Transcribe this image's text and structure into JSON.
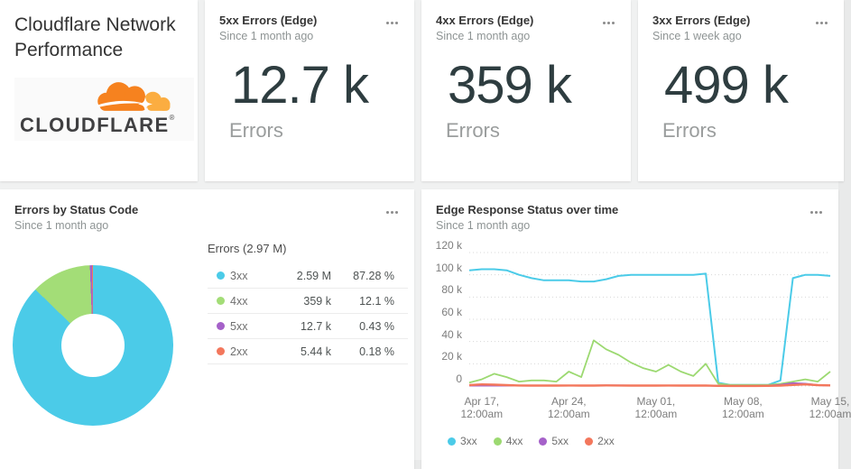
{
  "page": {
    "background": "#f0f1f1",
    "card_background": "#ffffff"
  },
  "markdown_card": {
    "title_line1": "Cloudflare Network",
    "title_line2": "Performance",
    "logo_wordmark": "CLOUDFLARE",
    "logo_registered": "®",
    "logo_orange": "#f6821f",
    "logo_light_orange": "#fbad41"
  },
  "billboards": [
    {
      "title": "5xx Errors (Edge)",
      "subtitle": "Since 1 month ago",
      "value": "12.7 k",
      "unit": "Errors"
    },
    {
      "title": "4xx Errors (Edge)",
      "subtitle": "Since 1 month ago",
      "value": "359 k",
      "unit": "Errors"
    },
    {
      "title": "3xx Errors (Edge)",
      "subtitle": "Since 1 week ago",
      "value": "499 k",
      "unit": "Errors"
    }
  ],
  "pie_card": {
    "title": "Errors by Status Code",
    "subtitle": "Since 1 month ago",
    "legend_header": "Errors (2.97 M)",
    "rows": [
      {
        "label": "3xx",
        "value": "2.59 M",
        "pct": "87.28 %",
        "color": "#4bcbe8"
      },
      {
        "label": "4xx",
        "value": "359 k",
        "pct": "12.1 %",
        "color": "#a3dd77"
      },
      {
        "label": "5xx",
        "value": "12.7 k",
        "pct": "0.43 %",
        "color": "#a561c9"
      },
      {
        "label": "2xx",
        "value": "5.44 k",
        "pct": "0.18 %",
        "color": "#f3775c"
      }
    ]
  },
  "line_card": {
    "title": "Edge Response Status over time",
    "subtitle": "Since 1 month ago"
  },
  "chart_data": [
    {
      "type": "pie",
      "title": "Errors by Status Code",
      "subtitle": "Since 1 month ago",
      "total_label": "Errors (2.97 M)",
      "categories": [
        "3xx",
        "4xx",
        "5xx",
        "2xx"
      ],
      "values_pct": [
        87.28,
        12.1,
        0.43,
        0.18
      ],
      "values_label": [
        "2.59 M",
        "359 k",
        "12.7 k",
        "5.44 k"
      ],
      "colors": [
        "#4bcbe8",
        "#a3dd77",
        "#a561c9",
        "#f3775c"
      ],
      "donut": true,
      "start_angle_deg": 0,
      "direction": "clockwise"
    },
    {
      "type": "line",
      "title": "Edge Response Status over time",
      "subtitle": "Since 1 month ago",
      "unit": "thousands of errors (k)",
      "ylim": [
        0,
        120
      ],
      "ytick_values": [
        0,
        20,
        40,
        60,
        80,
        100,
        120
      ],
      "ytick_labels": [
        "0",
        "20 k",
        "40 k",
        "60 k",
        "80 k",
        "100 k",
        "120 k"
      ],
      "grid": "dotted-horizontal",
      "legend_position": "bottom-left",
      "x": [
        "Apr 16",
        "Apr 17",
        "Apr 18",
        "Apr 19",
        "Apr 20",
        "Apr 21",
        "Apr 22",
        "Apr 23",
        "Apr 24",
        "Apr 25",
        "Apr 26",
        "Apr 27",
        "Apr 28",
        "Apr 29",
        "Apr 30",
        "May 01",
        "May 02",
        "May 03",
        "May 04",
        "May 05",
        "May 06",
        "May 07",
        "May 08",
        "May 09",
        "May 10",
        "May 11",
        "May 12",
        "May 13",
        "May 14",
        "May 15"
      ],
      "xticks": [
        {
          "index": 1,
          "line1": "Apr 17,",
          "line2": "12:00am"
        },
        {
          "index": 8,
          "line1": "Apr 24,",
          "line2": "12:00am"
        },
        {
          "index": 15,
          "line1": "May 01,",
          "line2": "12:00am"
        },
        {
          "index": 22,
          "line1": "May 08,",
          "line2": "12:00am"
        },
        {
          "index": 29,
          "line1": "May 15,",
          "line2": "12:00am"
        }
      ],
      "series": [
        {
          "name": "3xx",
          "color": "#4bcbe8",
          "values": [
            104,
            105,
            105,
            104,
            100,
            97,
            95,
            95,
            95,
            94,
            94,
            96,
            99,
            100,
            100,
            100,
            100,
            100,
            100,
            101,
            3,
            1,
            1,
            1,
            1,
            5,
            97,
            100,
            100,
            99
          ]
        },
        {
          "name": "4xx",
          "color": "#9cd971",
          "values": [
            3,
            6,
            11,
            8,
            4,
            5,
            5,
            4,
            13,
            8,
            41,
            33,
            28,
            21,
            16,
            13,
            19,
            13,
            9,
            20,
            2,
            1,
            1,
            1,
            1,
            2,
            4,
            6,
            4,
            13
          ]
        },
        {
          "name": "5xx",
          "color": "#a561c9",
          "values": [
            0.4,
            0.4,
            0.4,
            0.4,
            0.4,
            0.4,
            0.4,
            0.4,
            0.4,
            0.4,
            0.4,
            0.5,
            0.5,
            0.4,
            0.4,
            0.4,
            0.4,
            0.4,
            0.4,
            0.4,
            0.2,
            0.1,
            0.1,
            0.1,
            0.3,
            1,
            2.5,
            2,
            0.8,
            0.5
          ]
        },
        {
          "name": "2xx",
          "color": "#f3775c",
          "values": [
            0.8,
            1.5,
            1.2,
            0.8,
            0.5,
            0.4,
            0.4,
            0.4,
            0.5,
            0.4,
            0.4,
            0.6,
            0.5,
            0.4,
            0.4,
            0.4,
            0.5,
            0.4,
            0.4,
            0.5,
            0.2,
            0.1,
            0.1,
            0.1,
            0.2,
            0.4,
            1,
            1.5,
            0.8,
            0.6
          ]
        }
      ]
    }
  ]
}
